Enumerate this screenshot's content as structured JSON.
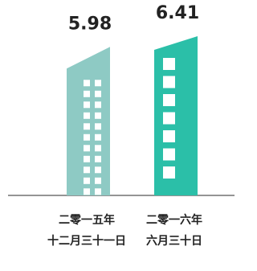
{
  "chart_data": {
    "type": "bar",
    "categories": [
      [
        "二零一五年",
        "十二月三十一日"
      ],
      [
        "二零一六年",
        "六月三十日"
      ]
    ],
    "values": [
      5.98,
      6.41
    ],
    "colors": [
      "#8ecac4",
      "#2bbfa8"
    ]
  }
}
